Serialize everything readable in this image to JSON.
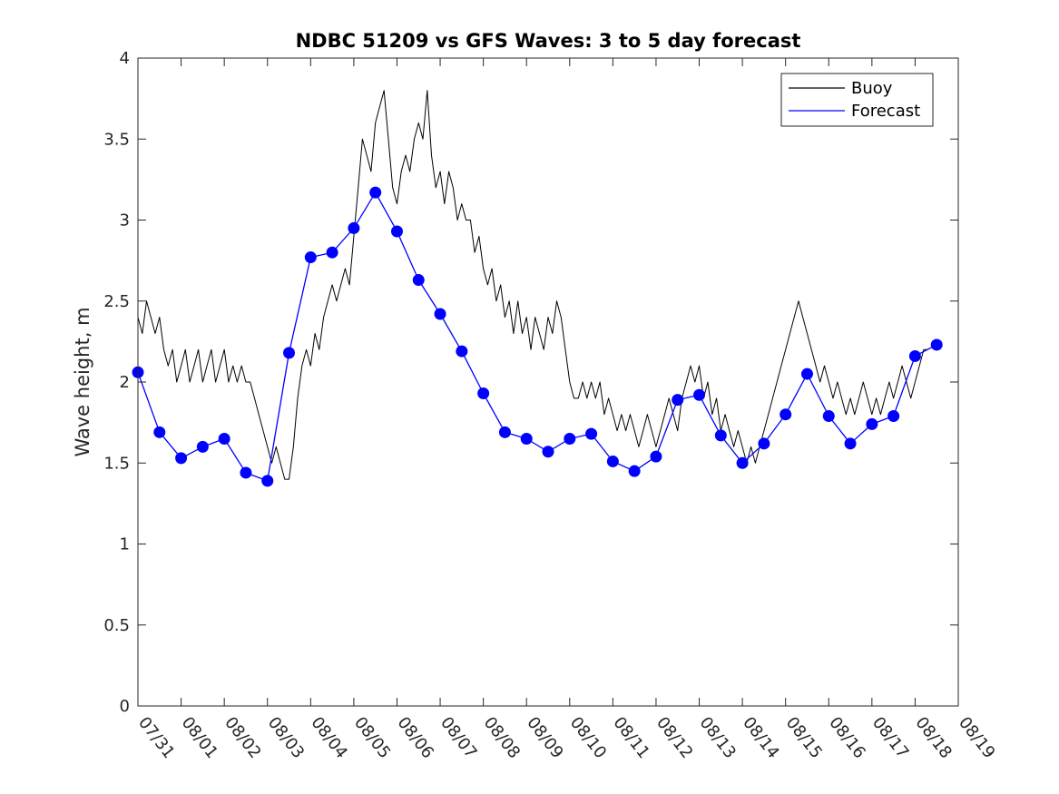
{
  "chart_data": {
    "type": "line",
    "title": "NDBC 51209 vs GFS Waves: 3 to 5 day forecast",
    "xlabel": "",
    "ylabel": "Wave height, m",
    "ylim": [
      0,
      4
    ],
    "yticks": [
      0,
      0.5,
      1,
      1.5,
      2,
      2.5,
      3,
      3.5,
      4
    ],
    "ytick_labels": [
      "0",
      "0.5",
      "1",
      "1.5",
      "2",
      "2.5",
      "3",
      "3.5",
      "4"
    ],
    "xlim": [
      0,
      19
    ],
    "xtick_labels": [
      "07/31",
      "08/01",
      "08/02",
      "08/03",
      "08/04",
      "08/05",
      "08/06",
      "08/07",
      "08/08",
      "08/09",
      "08/10",
      "08/11",
      "08/12",
      "08/13",
      "08/14",
      "08/15",
      "08/16",
      "08/17",
      "08/18",
      "08/19"
    ],
    "grid": false,
    "legend": {
      "location": "top-right",
      "entries": [
        {
          "label": "Buoy",
          "color": "#000000"
        },
        {
          "label": "Forecast",
          "color": "#0000ff"
        }
      ]
    },
    "series": [
      {
        "name": "Buoy",
        "color": "#000000",
        "points": [
          [
            0.0,
            2.4
          ],
          [
            0.1,
            2.3
          ],
          [
            0.2,
            2.5
          ],
          [
            0.3,
            2.4
          ],
          [
            0.4,
            2.3
          ],
          [
            0.5,
            2.4
          ],
          [
            0.6,
            2.2
          ],
          [
            0.7,
            2.1
          ],
          [
            0.8,
            2.2
          ],
          [
            0.9,
            2.0
          ],
          [
            1.0,
            2.1
          ],
          [
            1.1,
            2.2
          ],
          [
            1.2,
            2.0
          ],
          [
            1.3,
            2.1
          ],
          [
            1.4,
            2.2
          ],
          [
            1.5,
            2.0
          ],
          [
            1.6,
            2.1
          ],
          [
            1.7,
            2.2
          ],
          [
            1.8,
            2.0
          ],
          [
            1.9,
            2.1
          ],
          [
            2.0,
            2.2
          ],
          [
            2.1,
            2.0
          ],
          [
            2.2,
            2.1
          ],
          [
            2.3,
            2.0
          ],
          [
            2.4,
            2.1
          ],
          [
            2.5,
            2.0
          ],
          [
            2.6,
            2.0
          ],
          [
            2.7,
            1.9
          ],
          [
            2.8,
            1.8
          ],
          [
            2.9,
            1.7
          ],
          [
            3.0,
            1.6
          ],
          [
            3.1,
            1.5
          ],
          [
            3.2,
            1.6
          ],
          [
            3.3,
            1.5
          ],
          [
            3.4,
            1.4
          ],
          [
            3.5,
            1.4
          ],
          [
            3.6,
            1.6
          ],
          [
            3.7,
            1.9
          ],
          [
            3.8,
            2.1
          ],
          [
            3.9,
            2.2
          ],
          [
            4.0,
            2.1
          ],
          [
            4.1,
            2.3
          ],
          [
            4.2,
            2.2
          ],
          [
            4.3,
            2.4
          ],
          [
            4.4,
            2.5
          ],
          [
            4.5,
            2.6
          ],
          [
            4.6,
            2.5
          ],
          [
            4.7,
            2.6
          ],
          [
            4.8,
            2.7
          ],
          [
            4.9,
            2.6
          ],
          [
            5.0,
            2.9
          ],
          [
            5.1,
            3.2
          ],
          [
            5.2,
            3.5
          ],
          [
            5.3,
            3.4
          ],
          [
            5.4,
            3.3
          ],
          [
            5.5,
            3.6
          ],
          [
            5.6,
            3.7
          ],
          [
            5.7,
            3.8
          ],
          [
            5.8,
            3.5
          ],
          [
            5.9,
            3.2
          ],
          [
            6.0,
            3.1
          ],
          [
            6.1,
            3.3
          ],
          [
            6.2,
            3.4
          ],
          [
            6.3,
            3.3
          ],
          [
            6.4,
            3.5
          ],
          [
            6.5,
            3.6
          ],
          [
            6.6,
            3.5
          ],
          [
            6.7,
            3.8
          ],
          [
            6.8,
            3.4
          ],
          [
            6.9,
            3.2
          ],
          [
            7.0,
            3.3
          ],
          [
            7.1,
            3.1
          ],
          [
            7.2,
            3.3
          ],
          [
            7.3,
            3.2
          ],
          [
            7.4,
            3.0
          ],
          [
            7.5,
            3.1
          ],
          [
            7.6,
            3.0
          ],
          [
            7.7,
            3.0
          ],
          [
            7.8,
            2.8
          ],
          [
            7.9,
            2.9
          ],
          [
            8.0,
            2.7
          ],
          [
            8.1,
            2.6
          ],
          [
            8.2,
            2.7
          ],
          [
            8.3,
            2.5
          ],
          [
            8.4,
            2.6
          ],
          [
            8.5,
            2.4
          ],
          [
            8.6,
            2.5
          ],
          [
            8.7,
            2.3
          ],
          [
            8.8,
            2.5
          ],
          [
            8.9,
            2.3
          ],
          [
            9.0,
            2.4
          ],
          [
            9.1,
            2.2
          ],
          [
            9.2,
            2.4
          ],
          [
            9.3,
            2.3
          ],
          [
            9.4,
            2.2
          ],
          [
            9.5,
            2.4
          ],
          [
            9.6,
            2.3
          ],
          [
            9.7,
            2.5
          ],
          [
            9.8,
            2.4
          ],
          [
            9.9,
            2.2
          ],
          [
            10.0,
            2.0
          ],
          [
            10.1,
            1.9
          ],
          [
            10.2,
            1.9
          ],
          [
            10.3,
            2.0
          ],
          [
            10.4,
            1.9
          ],
          [
            10.5,
            2.0
          ],
          [
            10.6,
            1.9
          ],
          [
            10.7,
            2.0
          ],
          [
            10.8,
            1.8
          ],
          [
            10.9,
            1.9
          ],
          [
            11.0,
            1.8
          ],
          [
            11.1,
            1.7
          ],
          [
            11.2,
            1.8
          ],
          [
            11.3,
            1.7
          ],
          [
            11.4,
            1.8
          ],
          [
            11.5,
            1.7
          ],
          [
            11.6,
            1.6
          ],
          [
            11.7,
            1.7
          ],
          [
            11.8,
            1.8
          ],
          [
            11.9,
            1.7
          ],
          [
            12.0,
            1.6
          ],
          [
            12.1,
            1.7
          ],
          [
            12.2,
            1.8
          ],
          [
            12.3,
            1.9
          ],
          [
            12.4,
            1.8
          ],
          [
            12.5,
            1.7
          ],
          [
            12.6,
            1.9
          ],
          [
            12.7,
            2.0
          ],
          [
            12.8,
            2.1
          ],
          [
            12.9,
            2.0
          ],
          [
            13.0,
            2.1
          ],
          [
            13.1,
            1.9
          ],
          [
            13.2,
            2.0
          ],
          [
            13.3,
            1.8
          ],
          [
            13.4,
            1.9
          ],
          [
            13.5,
            1.7
          ],
          [
            13.6,
            1.8
          ],
          [
            13.7,
            1.7
          ],
          [
            13.8,
            1.6
          ],
          [
            13.9,
            1.7
          ],
          [
            14.0,
            1.6
          ],
          [
            14.1,
            1.5
          ],
          [
            14.2,
            1.6
          ],
          [
            14.3,
            1.5
          ],
          [
            14.4,
            1.6
          ],
          [
            14.5,
            1.7
          ],
          [
            14.6,
            1.8
          ],
          [
            14.7,
            1.9
          ],
          [
            14.8,
            2.0
          ],
          [
            14.9,
            2.1
          ],
          [
            15.0,
            2.2
          ],
          [
            15.1,
            2.3
          ],
          [
            15.2,
            2.4
          ],
          [
            15.3,
            2.5
          ],
          [
            15.4,
            2.4
          ],
          [
            15.5,
            2.3
          ],
          [
            15.6,
            2.2
          ],
          [
            15.7,
            2.1
          ],
          [
            15.8,
            2.0
          ],
          [
            15.9,
            2.1
          ],
          [
            16.0,
            2.0
          ],
          [
            16.1,
            1.9
          ],
          [
            16.2,
            2.0
          ],
          [
            16.3,
            1.9
          ],
          [
            16.4,
            1.8
          ],
          [
            16.5,
            1.9
          ],
          [
            16.6,
            1.8
          ],
          [
            16.7,
            1.9
          ],
          [
            16.8,
            2.0
          ],
          [
            16.9,
            1.9
          ],
          [
            17.0,
            1.8
          ],
          [
            17.1,
            1.9
          ],
          [
            17.2,
            1.8
          ],
          [
            17.3,
            1.9
          ],
          [
            17.4,
            2.0
          ],
          [
            17.5,
            1.9
          ],
          [
            17.6,
            2.0
          ],
          [
            17.7,
            2.1
          ],
          [
            17.8,
            2.0
          ],
          [
            17.9,
            1.9
          ],
          [
            18.0,
            2.0
          ],
          [
            18.1,
            2.1
          ],
          [
            18.2,
            2.2
          ],
          [
            18.3,
            2.2
          ]
        ]
      },
      {
        "name": "Forecast",
        "color": "#0000ff",
        "points": [
          [
            0.0,
            2.06
          ],
          [
            0.5,
            1.69
          ],
          [
            1.0,
            1.53
          ],
          [
            1.5,
            1.6
          ],
          [
            2.0,
            1.65
          ],
          [
            2.5,
            1.44
          ],
          [
            3.0,
            1.39
          ],
          [
            3.5,
            2.18
          ],
          [
            4.0,
            2.77
          ],
          [
            4.5,
            2.8
          ],
          [
            5.0,
            2.95
          ],
          [
            5.5,
            3.17
          ],
          [
            6.0,
            2.93
          ],
          [
            6.5,
            2.63
          ],
          [
            7.0,
            2.42
          ],
          [
            7.5,
            2.19
          ],
          [
            8.0,
            1.93
          ],
          [
            8.5,
            1.69
          ],
          [
            9.0,
            1.65
          ],
          [
            9.5,
            1.57
          ],
          [
            10.0,
            1.65
          ],
          [
            10.5,
            1.68
          ],
          [
            11.0,
            1.51
          ],
          [
            11.5,
            1.45
          ],
          [
            12.0,
            1.54
          ],
          [
            12.5,
            1.89
          ],
          [
            13.0,
            1.92
          ],
          [
            13.5,
            1.67
          ],
          [
            14.0,
            1.5
          ],
          [
            14.5,
            1.62
          ],
          [
            15.0,
            1.8
          ],
          [
            15.5,
            2.05
          ],
          [
            16.0,
            1.79
          ],
          [
            16.5,
            1.62
          ],
          [
            17.0,
            1.74
          ],
          [
            17.5,
            1.79
          ],
          [
            18.0,
            2.16
          ],
          [
            18.5,
            2.23
          ]
        ]
      }
    ]
  }
}
